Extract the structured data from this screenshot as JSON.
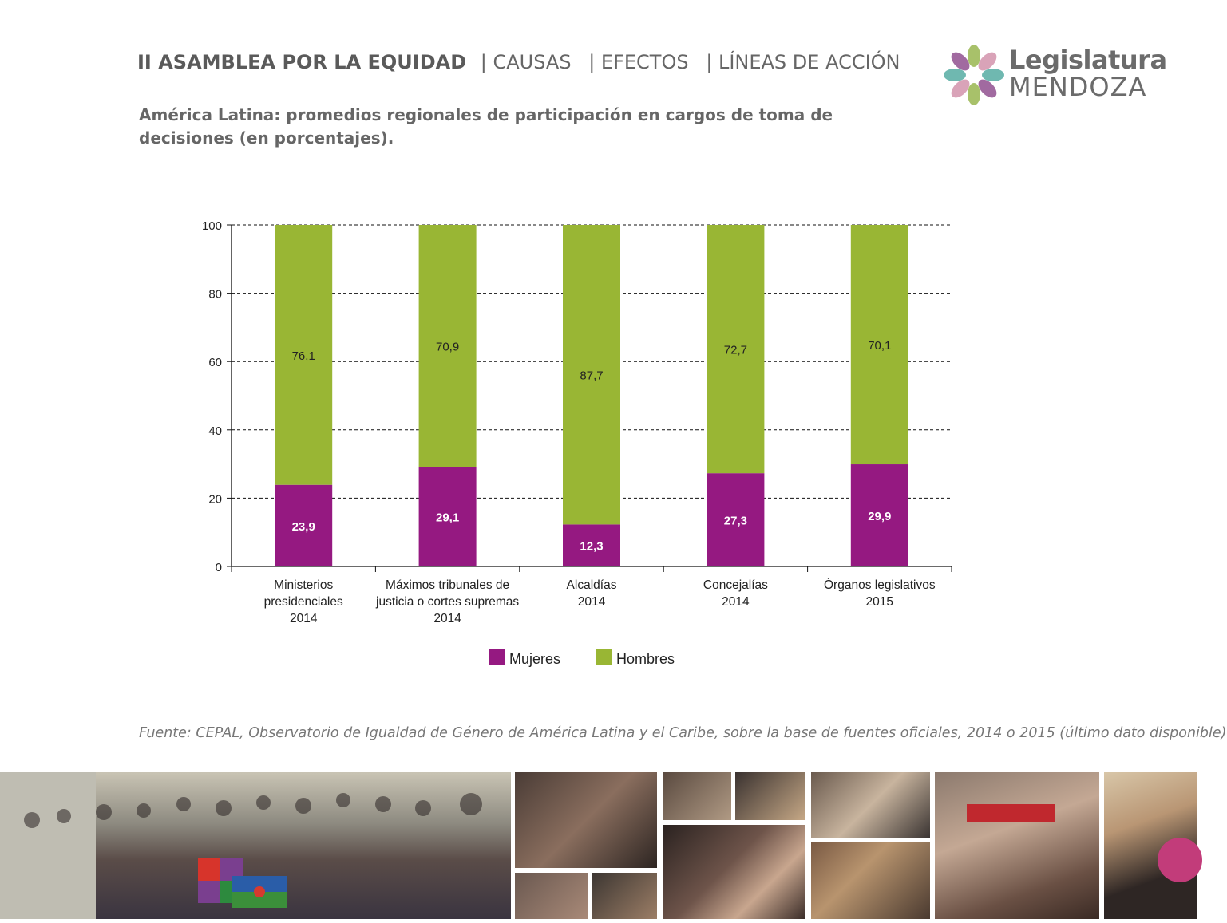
{
  "header": {
    "title": "II ASAMBLEA POR LA EQUIDAD",
    "sections": [
      "| CAUSAS",
      "| EFECTOS",
      "| LÍNEAS DE ACCIÓN"
    ]
  },
  "subtitle": "América Latina: promedios regionales de participación en cargos de toma de decisiones (en porcentajes).",
  "logo": {
    "line1": "Legislatura",
    "line2": "MENDOZA"
  },
  "chart_data": {
    "type": "bar",
    "stacked": true,
    "categories": [
      [
        "Ministerios",
        "presidenciales",
        "2014"
      ],
      [
        "Máximos tribunales de",
        "justicia o cortes supremas",
        "2014"
      ],
      [
        "Alcaldías",
        "2014"
      ],
      [
        "Concejalías",
        "2014"
      ],
      [
        "Órganos legislativos",
        "2015"
      ]
    ],
    "series": [
      {
        "name": "Mujeres",
        "color": "#951981",
        "values": [
          23.9,
          29.1,
          12.3,
          27.3,
          29.9
        ],
        "labels": [
          "23,9",
          "29,1",
          "12,3",
          "27,3",
          "29,9"
        ]
      },
      {
        "name": "Hombres",
        "color": "#99b634",
        "values": [
          76.1,
          70.9,
          87.7,
          72.7,
          70.1
        ],
        "labels": [
          "76,1",
          "70,9",
          "87,7",
          "72,7",
          "70,1"
        ]
      }
    ],
    "ylim": [
      0,
      100
    ],
    "yticks": [
      0,
      20,
      40,
      60,
      80,
      100
    ],
    "grid": true,
    "legend": "bottom"
  },
  "source": "Fuente: CEPAL, Observatorio de Igualdad de Género de América Latina y el Caribe, sobre la base de fuentes oficiales, 2014 o 2015 (último dato disponible)"
}
